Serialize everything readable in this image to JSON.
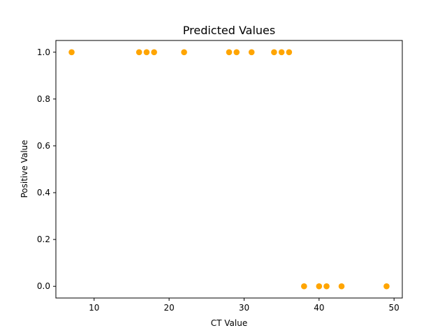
{
  "chart_data": {
    "type": "scatter",
    "title": "Predicted Values",
    "xlabel": "CT Value",
    "ylabel": "Positive Value",
    "xlim": [
      4.9,
      51.1
    ],
    "ylim": [
      -0.05,
      1.05
    ],
    "xticks": [
      10,
      20,
      30,
      40,
      50
    ],
    "yticks": [
      0.0,
      0.2,
      0.4,
      0.6,
      0.8,
      1.0
    ],
    "xtick_labels": [
      "10",
      "20",
      "30",
      "40",
      "50"
    ],
    "ytick_labels": [
      "0.0",
      "0.2",
      "0.4",
      "0.6",
      "0.8",
      "1.0"
    ],
    "grid": false,
    "marker_color": "#ffa500",
    "points": [
      {
        "x": 7,
        "y": 1
      },
      {
        "x": 16,
        "y": 1
      },
      {
        "x": 17,
        "y": 1
      },
      {
        "x": 18,
        "y": 1
      },
      {
        "x": 22,
        "y": 1
      },
      {
        "x": 28,
        "y": 1
      },
      {
        "x": 29,
        "y": 1
      },
      {
        "x": 31,
        "y": 1
      },
      {
        "x": 34,
        "y": 1
      },
      {
        "x": 35,
        "y": 1
      },
      {
        "x": 36,
        "y": 1
      },
      {
        "x": 38,
        "y": 0
      },
      {
        "x": 40,
        "y": 0
      },
      {
        "x": 41,
        "y": 0
      },
      {
        "x": 43,
        "y": 0
      },
      {
        "x": 49,
        "y": 0
      }
    ]
  }
}
